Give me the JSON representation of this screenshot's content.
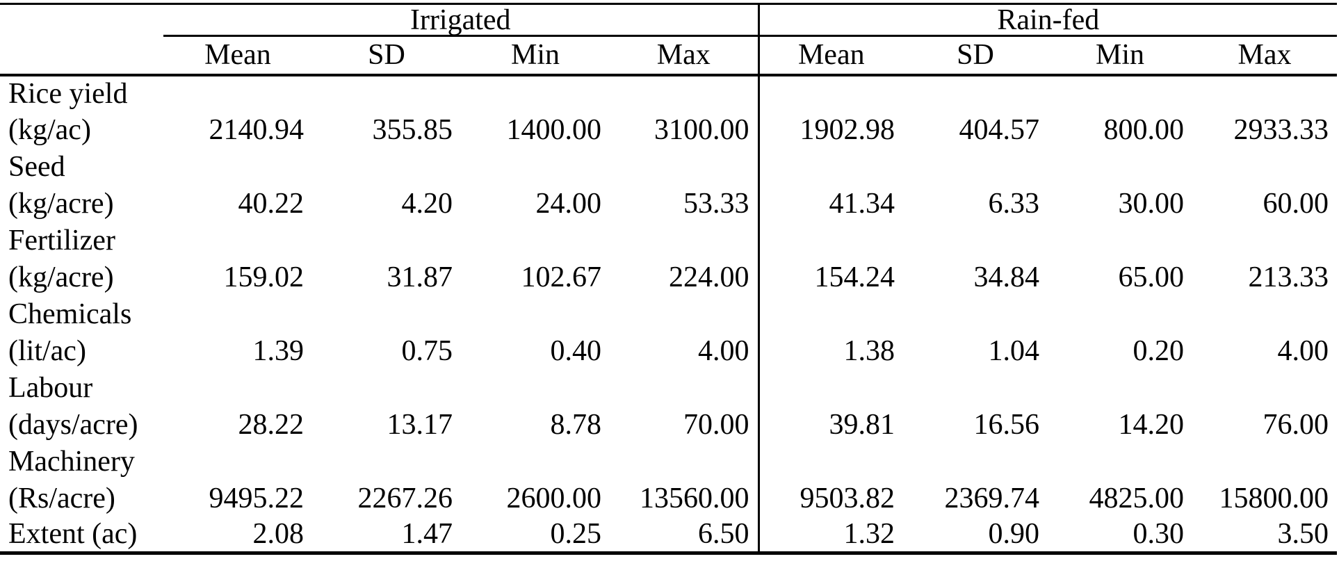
{
  "table": {
    "stub_header": "",
    "groups": [
      {
        "label": "Irrigated",
        "sub_columns": [
          "Mean",
          "SD",
          "Min",
          "Max"
        ]
      },
      {
        "label": "Rain-fed",
        "sub_columns": [
          "Mean",
          "SD",
          "Min",
          "Max"
        ]
      }
    ],
    "rows": [
      {
        "name": "Rice yield",
        "unit": "(kg/ac)",
        "values": [
          "2140.94",
          "355.85",
          "1400.00",
          "3100.00",
          "1902.98",
          "404.57",
          "800.00",
          "2933.33"
        ]
      },
      {
        "name": "Seed",
        "unit": "(kg/acre)",
        "values": [
          "40.22",
          "4.20",
          "24.00",
          "53.33",
          "41.34",
          "6.33",
          "30.00",
          "60.00"
        ]
      },
      {
        "name": "Fertilizer",
        "unit": "(kg/acre)",
        "values": [
          "159.02",
          "31.87",
          "102.67",
          "224.00",
          "154.24",
          "34.84",
          "65.00",
          "213.33"
        ]
      },
      {
        "name": "Chemicals",
        "unit": "(lit/ac)",
        "values": [
          "1.39",
          "0.75",
          "0.40",
          "4.00",
          "1.38",
          "1.04",
          "0.20",
          "4.00"
        ]
      },
      {
        "name": "Labour",
        "unit": "(days/acre)",
        "values": [
          "28.22",
          "13.17",
          "8.78",
          "70.00",
          "39.81",
          "16.56",
          "14.20",
          "76.00"
        ]
      },
      {
        "name": "Machinery",
        "unit": "(Rs/acre)",
        "values": [
          "9495.22",
          "2267.26",
          "2600.00",
          "13560.00",
          "9503.82",
          "2369.74",
          "4825.00",
          "15800.00"
        ]
      },
      {
        "name": null,
        "unit": "Extent (ac)",
        "values": [
          "2.08",
          "1.47",
          "0.25",
          "6.50",
          "1.32",
          "0.90",
          "0.30",
          "3.50"
        ]
      }
    ],
    "colors": {
      "rule": "#000000",
      "background": "#ffffff",
      "text": "#000000"
    }
  }
}
